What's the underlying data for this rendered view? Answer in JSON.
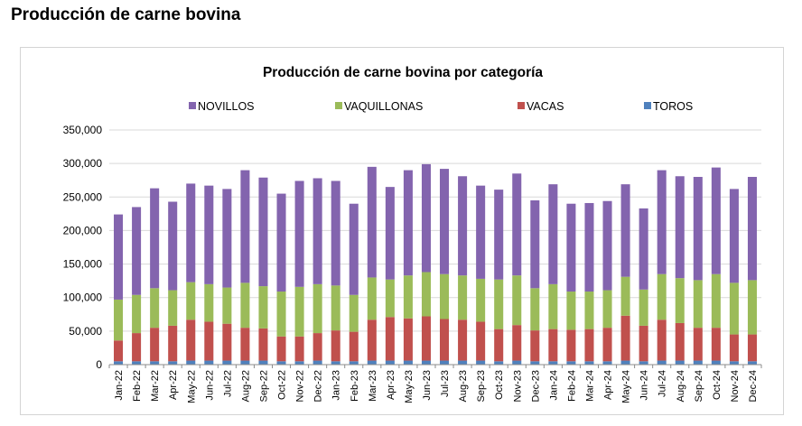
{
  "page": {
    "heading": "Producción de carne bovina"
  },
  "colors": {
    "NOVILLOS": "#8364ae",
    "VAQUILLONAS": "#9bbb59",
    "VACAS": "#c0504d",
    "TOROS": "#4f81bd",
    "grid": "#d9d9d9",
    "axis": "#8c8c8c"
  },
  "chart_data": {
    "type": "bar",
    "stacked": true,
    "title": "Producción de carne bovina por categoría",
    "xlabel": "",
    "ylabel": "",
    "ylim": [
      0,
      350000
    ],
    "yticks": [
      "350,000",
      "300,000",
      "250,000",
      "200,000",
      "150,000",
      "100,000",
      "50,000",
      "0"
    ],
    "legend_position": "top",
    "grid": true,
    "categories": [
      "Jan-22",
      "Feb-22",
      "Mar-22",
      "Apr-22",
      "May-22",
      "Jun-22",
      "Jul-22",
      "Aug-22",
      "Sep-22",
      "Oct-22",
      "Nov-22",
      "Dec-22",
      "Jan-23",
      "Feb-23",
      "Mar-23",
      "Apr-23",
      "May-23",
      "Jun-23",
      "Jul-23",
      "Aug-23",
      "Sep-23",
      "Oct-23",
      "Nov-23",
      "Dec-23",
      "Jan-24",
      "Feb-24",
      "Mar-24",
      "Apr-24",
      "May-24",
      "Jun-24",
      "Jul-24",
      "Aug-24",
      "Sep-24",
      "Oct-24",
      "Nov-24",
      "Dec-24"
    ],
    "series": [
      {
        "name": "TOROS",
        "values": [
          5000,
          5000,
          5000,
          5000,
          6000,
          6000,
          6000,
          6000,
          6000,
          5000,
          5000,
          6000,
          5000,
          5000,
          6000,
          6000,
          6000,
          6000,
          6000,
          6000,
          6000,
          5000,
          6000,
          5000,
          5000,
          5000,
          5000,
          5000,
          6000,
          5000,
          6000,
          6000,
          6000,
          6000,
          5000,
          5000
        ]
      },
      {
        "name": "VACAS",
        "values": [
          31000,
          42000,
          50000,
          53000,
          61000,
          58000,
          55000,
          49000,
          48000,
          37000,
          37000,
          41000,
          46000,
          44000,
          61000,
          65000,
          63000,
          66000,
          62000,
          61000,
          58000,
          48000,
          53000,
          46000,
          48000,
          47000,
          48000,
          50000,
          67000,
          53000,
          61000,
          56000,
          49000,
          49000,
          40000,
          40000
        ]
      },
      {
        "name": "VAQUILLONAS",
        "values": [
          61000,
          57000,
          59000,
          53000,
          56000,
          56000,
          54000,
          67000,
          63000,
          67000,
          74000,
          73000,
          67000,
          55000,
          63000,
          56000,
          64000,
          66000,
          67000,
          66000,
          64000,
          74000,
          74000,
          63000,
          67000,
          57000,
          56000,
          56000,
          58000,
          54000,
          68000,
          67000,
          71000,
          80000,
          77000,
          81000
        ]
      },
      {
        "name": "NOVILLOS",
        "values": [
          127000,
          131000,
          149000,
          132000,
          147000,
          147000,
          147000,
          168000,
          162000,
          146000,
          158000,
          158000,
          156000,
          136000,
          165000,
          138000,
          157000,
          161000,
          157000,
          148000,
          139000,
          134000,
          152000,
          131000,
          149000,
          131000,
          132000,
          133000,
          138000,
          121000,
          155000,
          152000,
          154000,
          159000,
          140000,
          154000
        ]
      }
    ],
    "legend_order": [
      "NOVILLOS",
      "VAQUILLONAS",
      "VACAS",
      "TOROS"
    ]
  }
}
